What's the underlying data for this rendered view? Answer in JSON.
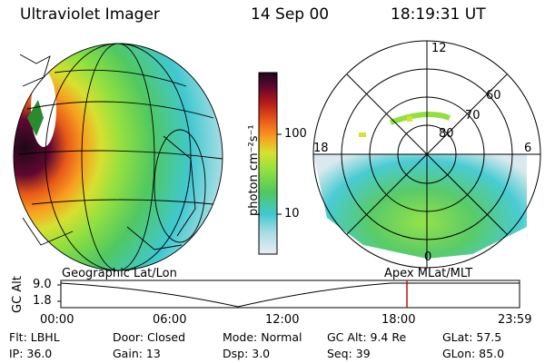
{
  "header": {
    "title": "Ultraviolet Imager",
    "date": "14 Sep 00",
    "time": "18:19:31 UT"
  },
  "colorbar": {
    "label": "photon cm⁻²s⁻¹",
    "ticks": [
      "100",
      "10"
    ],
    "colors": [
      "#d8e8ec",
      "#a8dce4",
      "#40c8d0",
      "#50c860",
      "#90e040",
      "#d8e030",
      "#f8a020",
      "#e85818",
      "#b01818",
      "#600830",
      "#1c0818"
    ]
  },
  "geo_panel": {
    "caption": "Geographic Lat/Lon"
  },
  "polar_panel": {
    "caption": "Apex  MLat/MLT",
    "mlt_labels": {
      "top": "12",
      "left": "18",
      "right": "6",
      "bottom": "0"
    },
    "lat_labels": [
      "60",
      "70",
      "80"
    ]
  },
  "timeline": {
    "axis_label": "GC Alt",
    "y_ticks": [
      "9.0",
      "1.8"
    ],
    "x_ticks": [
      "00:00",
      "06:00",
      "12:00",
      "18:00",
      "23:59"
    ],
    "marker_color": "#c01010"
  },
  "info": {
    "rows": [
      [
        "Flt: LBHL",
        "Door: Closed",
        "Mode: Normal",
        "GC Alt: 9.4 Re",
        "GLat:  57.5"
      ],
      [
        "IP: 36.0",
        "Gain: 13",
        "Dsp:     3.0",
        "Seq: 39",
        "GLon:  85.0"
      ]
    ]
  }
}
